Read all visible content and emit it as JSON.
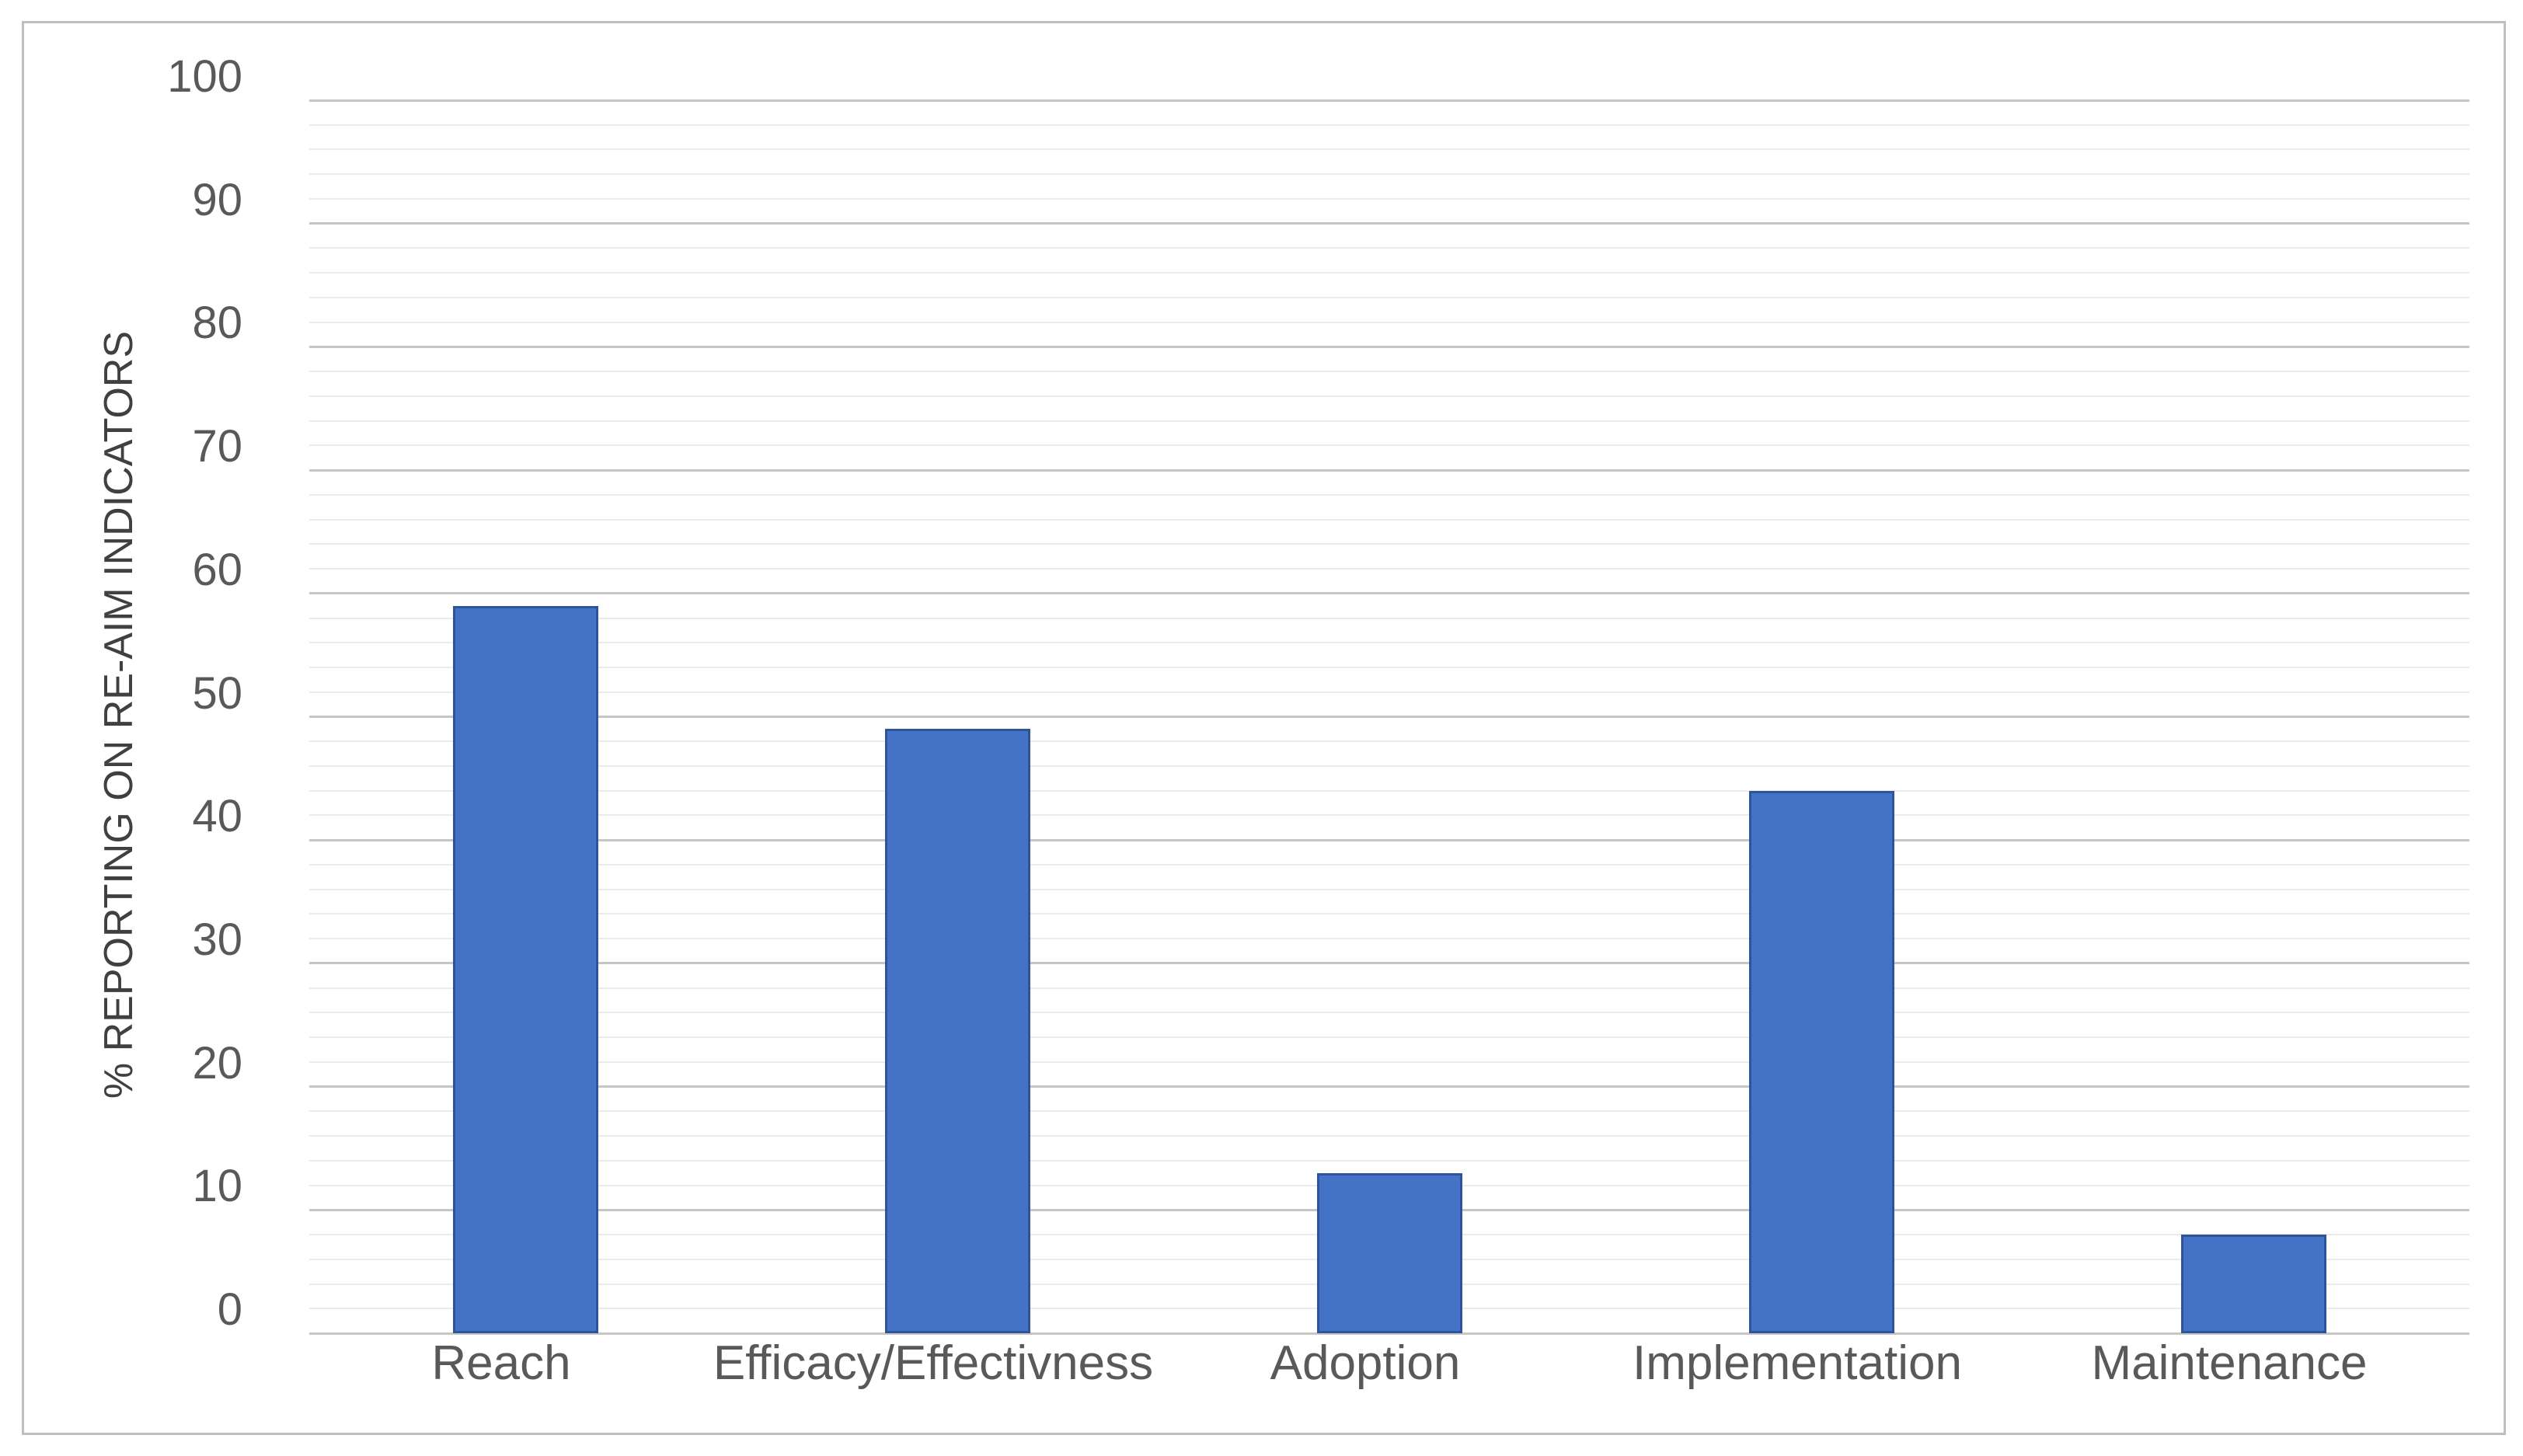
{
  "chart_data": {
    "type": "bar",
    "categories": [
      "Reach",
      "Efficacy/Effectivness",
      "Adoption",
      "Implementation",
      "Maintenance"
    ],
    "values": [
      59,
      49,
      13,
      44,
      8
    ],
    "title": "",
    "xlabel": "",
    "ylabel": "% REPORTING ON RE-AIM INDICATORS",
    "ylim": [
      0,
      100
    ],
    "y_ticks": [
      0,
      10,
      20,
      30,
      40,
      50,
      60,
      70,
      80,
      90,
      100
    ],
    "major_tick_step": 10,
    "minor_tick_step": 2,
    "grid": "major and minor horizontal gridlines",
    "legend": "none",
    "series_name": ""
  },
  "colors": {
    "bar_fill": "#4472C4",
    "bar_border": "#30549B",
    "major_gridline": "#C6C6C6",
    "minor_gridline": "#EBEBEB",
    "tick_label": "#595959",
    "axis_title": "#404040",
    "frame_border": "#BFBFBF",
    "background": "#FFFFFF"
  }
}
